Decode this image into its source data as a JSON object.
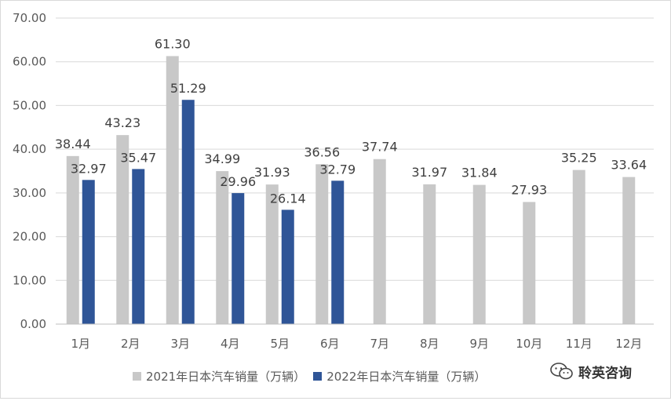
{
  "chart_data": {
    "type": "bar",
    "categories": [
      "1月",
      "2月",
      "3月",
      "4月",
      "5月",
      "6月",
      "7月",
      "8月",
      "9月",
      "10月",
      "11月",
      "12月"
    ],
    "series": [
      {
        "name": "2021年日本汽车销量（万辆）",
        "color": "#c8c8c8",
        "values": [
          38.44,
          43.23,
          61.3,
          34.99,
          31.93,
          36.56,
          37.74,
          31.97,
          31.84,
          27.93,
          35.25,
          33.64
        ]
      },
      {
        "name": "2022年日本汽车销量（万辆）",
        "color": "#2f5597",
        "values": [
          32.97,
          35.47,
          51.29,
          29.96,
          26.14,
          32.79,
          null,
          null,
          null,
          null,
          null,
          null
        ]
      }
    ],
    "ylim": [
      0,
      70
    ],
    "yticks": [
      "0.00",
      "10.00",
      "20.00",
      "30.00",
      "40.00",
      "50.00",
      "60.00",
      "70.00"
    ],
    "grid": true,
    "legend_position": "bottom"
  },
  "watermark": {
    "text": "聆英咨询",
    "icon": "wechat-icon"
  }
}
